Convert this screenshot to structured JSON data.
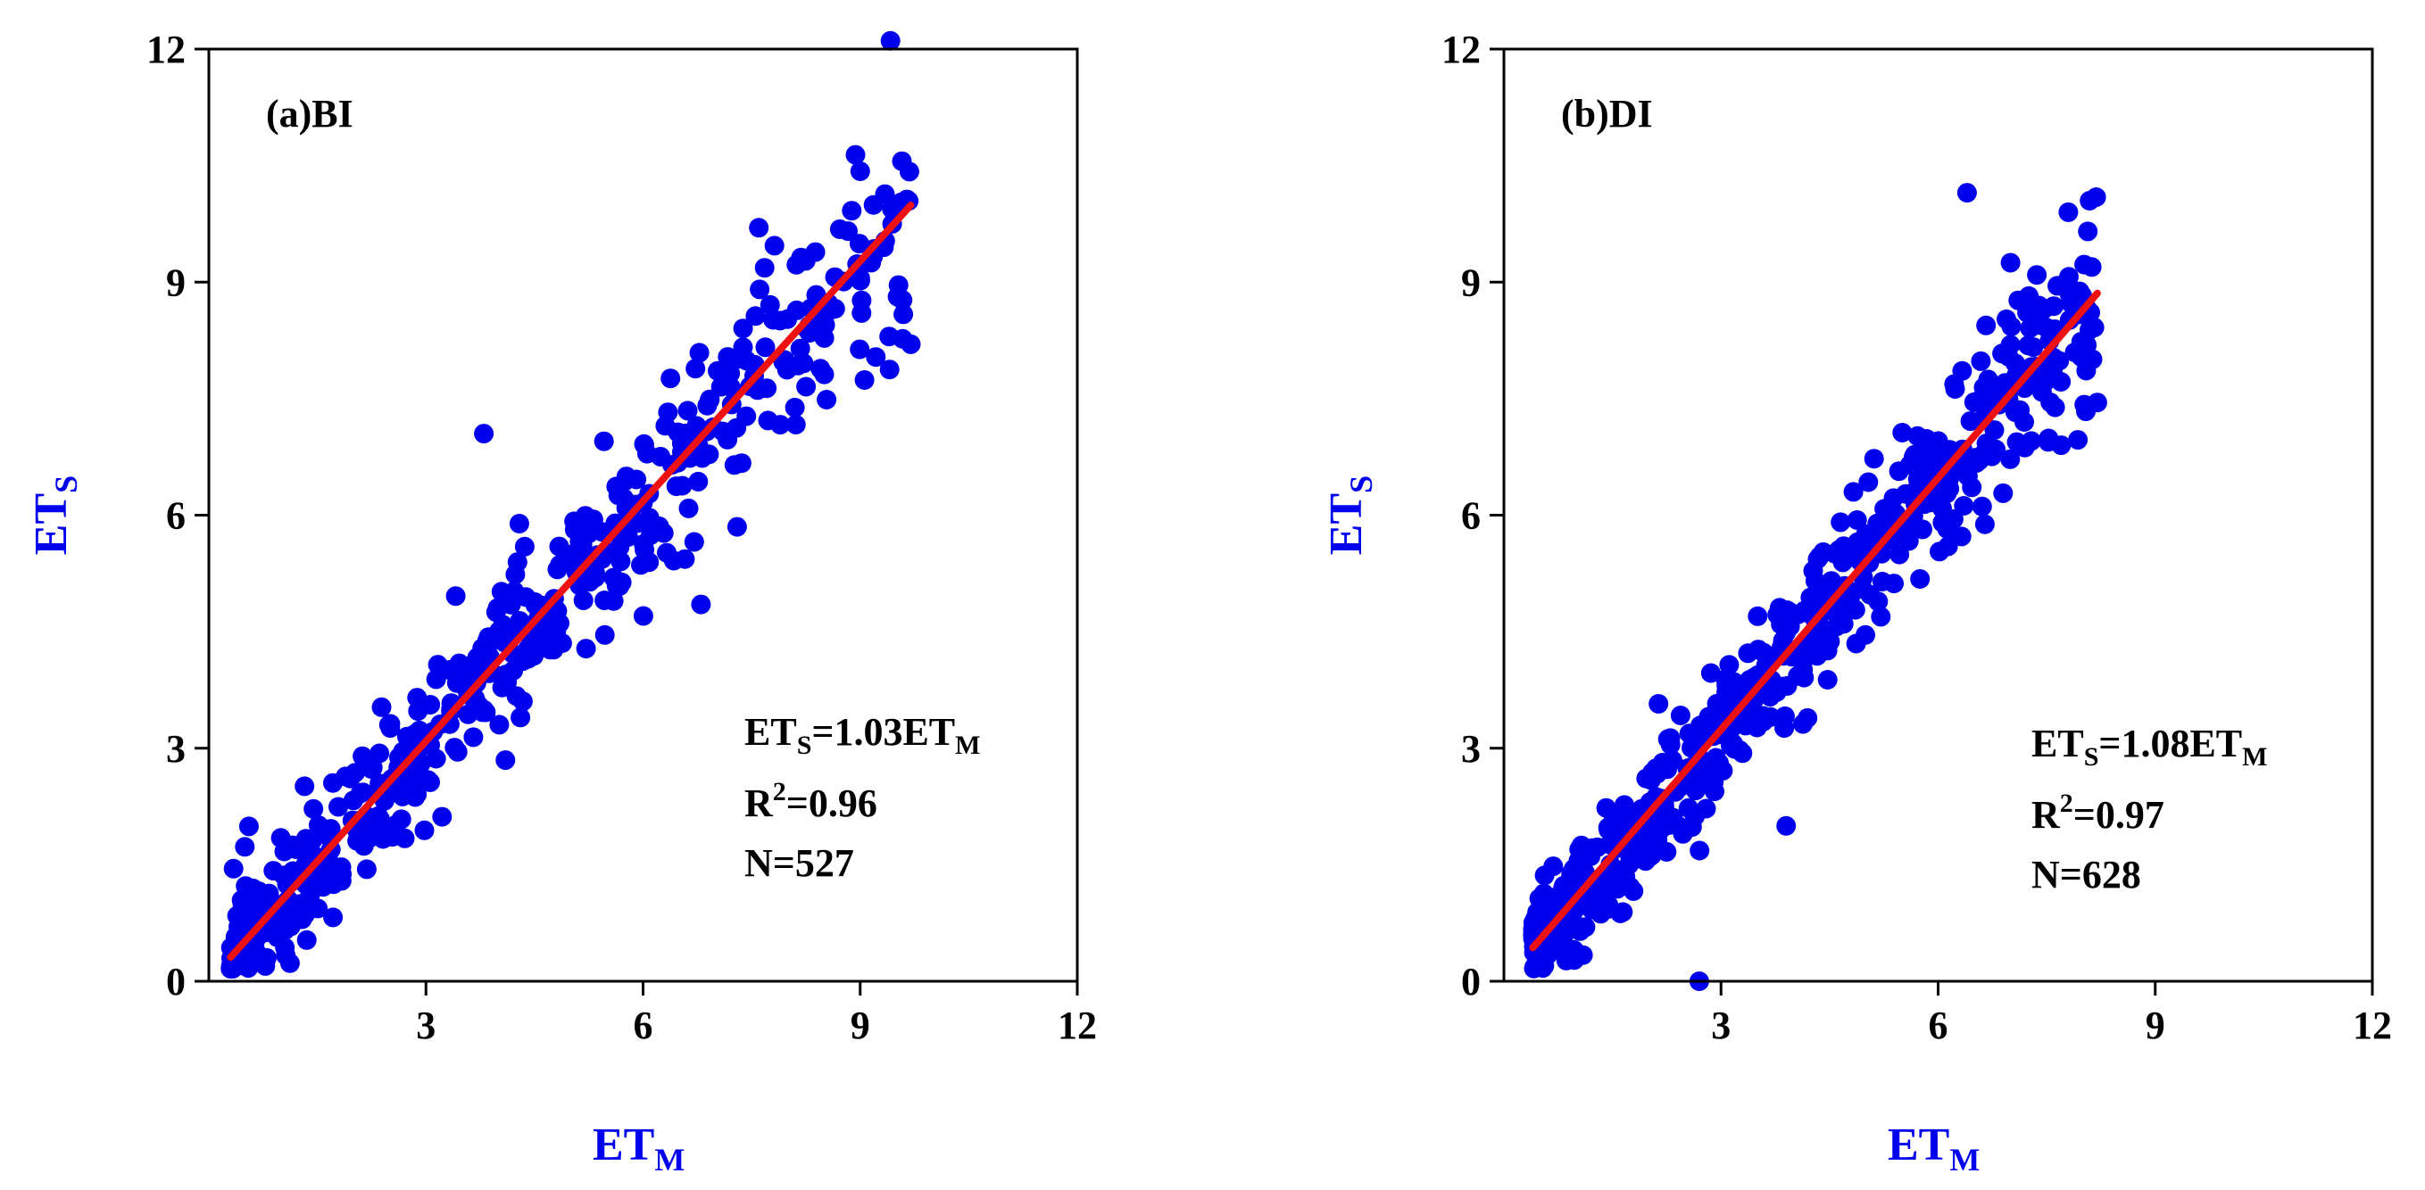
{
  "figure": {
    "colors": {
      "points": "#0000ee",
      "fit_line": "#ee1111",
      "axis": "#000000",
      "axis_title": "#0000ee"
    }
  },
  "chart_data": [
    {
      "type": "scatter",
      "panel_label": "(a)BI",
      "xlabel": {
        "main": "ET",
        "sub": "M"
      },
      "ylabel": {
        "main": "ET",
        "sub": "S"
      },
      "xlim": [
        0,
        12
      ],
      "ylim": [
        0,
        12
      ],
      "x_ticks": [
        3,
        6,
        9,
        12
      ],
      "y_ticks": [
        0,
        3,
        6,
        9,
        12
      ],
      "x_tick_labels": [
        "3",
        "6",
        "9",
        "12"
      ],
      "y_tick_labels": [
        "0",
        "3",
        "6",
        "9",
        "12"
      ],
      "fit_line": {
        "slope": 1.03,
        "intercept": 0,
        "x_range": [
          0.3,
          9.7
        ]
      },
      "equation": {
        "lhs": "ET",
        "lhs_sub": "S",
        "rhs": "=1.03ET",
        "rhs_sub": "M"
      },
      "r2": {
        "prefix": "R",
        "sup": "2",
        "value": "=0.96"
      },
      "n_label": "N=527",
      "n": 527,
      "point_cloud": {
        "seed": 11,
        "x_min": 0.3,
        "x_max": 9.7,
        "noise_sd": 0.55,
        "count": 527,
        "note": "dense scatter, heavier at low values"
      },
      "notable_points": [
        {
          "x": 3.8,
          "y": 7.05
        },
        {
          "x": 7.6,
          "y": 9.7
        },
        {
          "x": 9.0,
          "y": 9.05
        },
        {
          "x": 9.4,
          "y": 8.3
        },
        {
          "x": 9.7,
          "y": 8.2
        },
        {
          "x": 7.3,
          "y": 5.85
        },
        {
          "x": 0.8,
          "y": 0.3
        },
        {
          "x": 6.8,
          "y": 4.85
        }
      ]
    },
    {
      "type": "scatter",
      "panel_label": "(b)DI",
      "xlabel": {
        "main": "ET",
        "sub": "M"
      },
      "ylabel": {
        "main": "ET",
        "sub": "S"
      },
      "xlim": [
        0,
        12
      ],
      "ylim": [
        0,
        12
      ],
      "x_ticks": [
        3,
        6,
        9,
        12
      ],
      "y_ticks": [
        0,
        3,
        6,
        9,
        12
      ],
      "x_tick_labels": [
        "3",
        "6",
        "9",
        "12"
      ],
      "y_tick_labels": [
        "0",
        "3",
        "6",
        "9",
        "12"
      ],
      "fit_line": {
        "slope": 1.08,
        "intercept": 0,
        "x_range": [
          0.4,
          8.2
        ]
      },
      "equation": {
        "lhs": "ET",
        "lhs_sub": "S",
        "rhs": "=1.08ET",
        "rhs_sub": "M"
      },
      "r2": {
        "prefix": "R",
        "sup": "2",
        "value": "=0.97"
      },
      "n_label": "N=628",
      "n": 628,
      "point_cloud": {
        "seed": 23,
        "x_min": 0.4,
        "x_max": 8.2,
        "noise_sd": 0.5,
        "count": 628,
        "note": "dense scatter along fit line"
      },
      "notable_points": [
        {
          "x": 6.4,
          "y": 10.15
        },
        {
          "x": 7.8,
          "y": 9.9
        },
        {
          "x": 7.0,
          "y": 9.25
        },
        {
          "x": 2.7,
          "y": 0.0
        },
        {
          "x": 3.9,
          "y": 2.0
        },
        {
          "x": 7.7,
          "y": 6.9
        },
        {
          "x": 8.2,
          "y": 7.45
        },
        {
          "x": 0.5,
          "y": 0.8
        }
      ]
    }
  ]
}
